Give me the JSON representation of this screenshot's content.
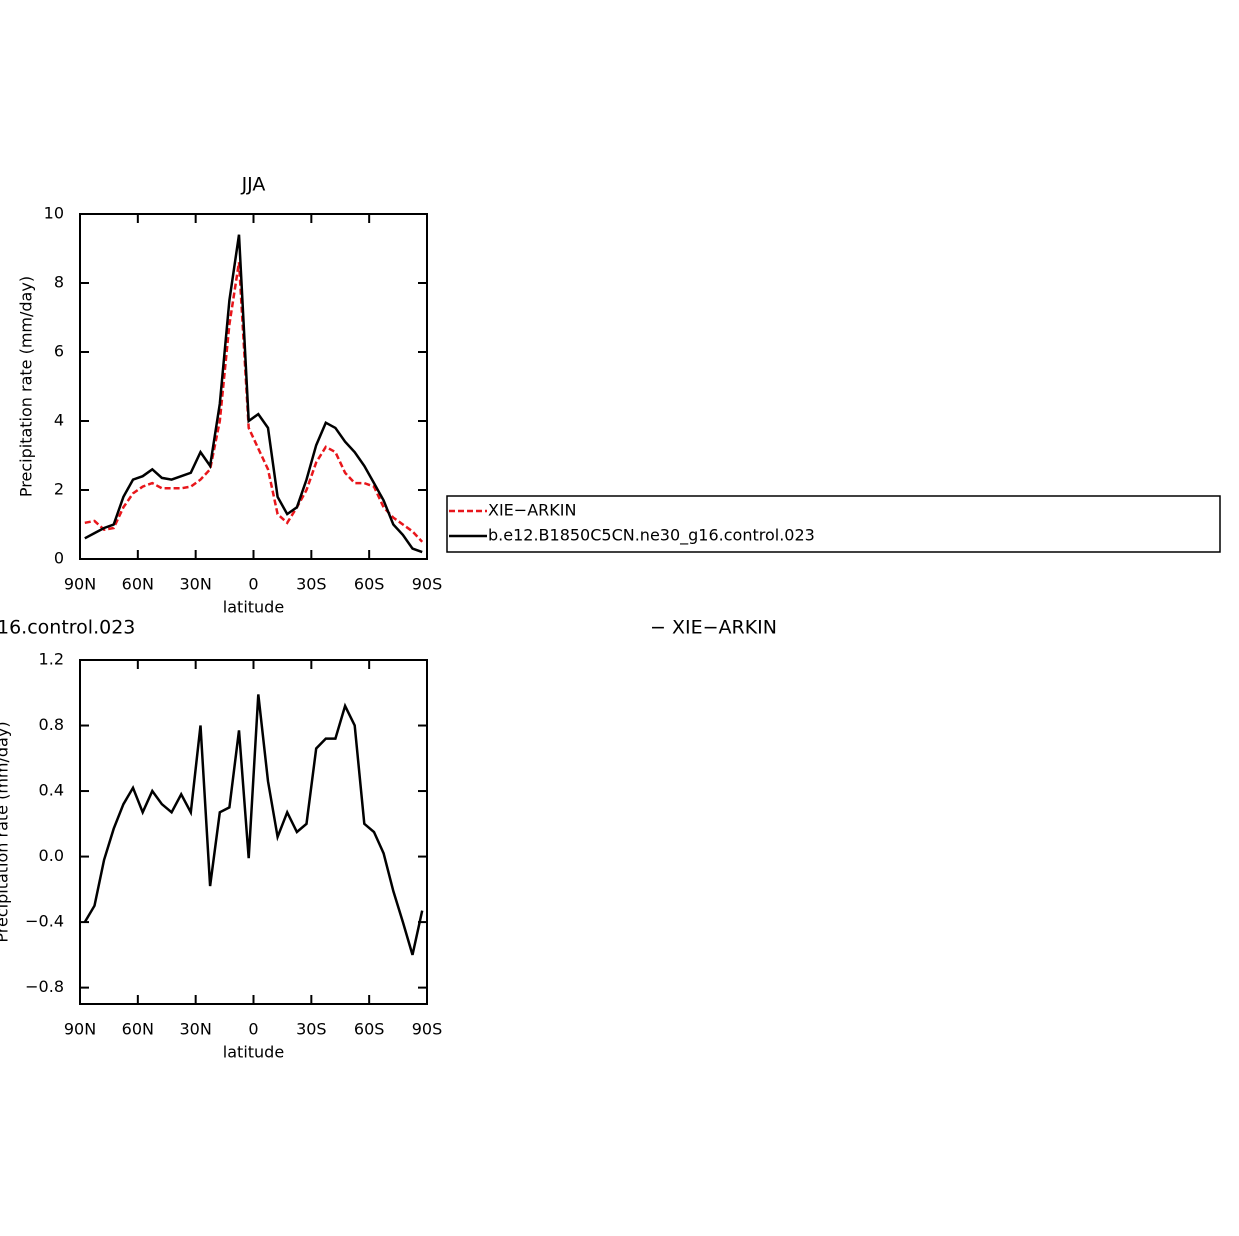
{
  "chart_data": [
    {
      "type": "line",
      "title": "JJA",
      "xlabel": "latitude",
      "ylabel": "Precipitation rate (mm/day)",
      "x": [
        87.5,
        82.5,
        77.5,
        72.5,
        67.5,
        62.5,
        57.5,
        52.5,
        47.5,
        42.5,
        37.5,
        32.5,
        27.5,
        22.5,
        17.5,
        12.5,
        7.5,
        2.5,
        -2.5,
        -7.5,
        -12.5,
        -17.5,
        -22.5,
        -27.5,
        -32.5,
        -37.5,
        -42.5,
        -47.5,
        -52.5,
        -57.5,
        -62.5,
        -67.5,
        -72.5,
        -77.5,
        -82.5,
        -87.5
      ],
      "series": [
        {
          "name": "XIE−ARKIN",
          "color": "#e8161b",
          "style": "dashed",
          "values": [
            1.05,
            1.1,
            0.85,
            0.9,
            1.5,
            1.9,
            2.1,
            2.2,
            2.05,
            2.05,
            2.05,
            2.1,
            2.3,
            2.6,
            4.0,
            6.8,
            8.6,
            3.8,
            3.2,
            2.6,
            1.3,
            1.05,
            1.5,
            2.0,
            2.8,
            3.25,
            3.1,
            2.5,
            2.2,
            2.2,
            2.1,
            1.5,
            1.2,
            1.0,
            0.8,
            0.5
          ]
        },
        {
          "name": "b.e12.B1850C5CN.ne30_g16.control.023",
          "color": "#000000",
          "style": "solid",
          "values": [
            0.6,
            0.75,
            0.9,
            1.0,
            1.8,
            2.3,
            2.4,
            2.6,
            2.35,
            2.3,
            2.4,
            2.5,
            3.1,
            2.7,
            4.5,
            7.5,
            9.4,
            4.0,
            4.2,
            3.8,
            1.8,
            1.3,
            1.5,
            2.3,
            3.3,
            3.95,
            3.8,
            3.4,
            3.1,
            2.7,
            2.2,
            1.7,
            1.0,
            0.7,
            0.3,
            0.2
          ]
        }
      ],
      "xlim": [
        90,
        -90
      ],
      "xticks": [
        {
          "value": 90,
          "label": "90N"
        },
        {
          "value": 60,
          "label": "60N"
        },
        {
          "value": 30,
          "label": "30N"
        },
        0,
        {
          "value": -30,
          "label": "30S"
        },
        {
          "value": -60,
          "label": "60S"
        },
        {
          "value": -90,
          "label": "90S"
        }
      ],
      "ylim": [
        0,
        10
      ],
      "yticks": [
        0,
        2,
        4,
        6,
        8,
        10
      ],
      "legend": "right"
    },
    {
      "type": "line",
      "title_fragments": [
        "16.control.023",
        "− XIE−ARKIN"
      ],
      "xlabel": "latitude",
      "ylabel": "Precipitation rate (mm/day)",
      "x": [
        87.5,
        82.5,
        77.5,
        72.5,
        67.5,
        62.5,
        57.5,
        52.5,
        47.5,
        42.5,
        37.5,
        32.5,
        27.5,
        22.5,
        17.5,
        12.5,
        7.5,
        2.5,
        -2.5,
        -7.5,
        -12.5,
        -17.5,
        -22.5,
        -27.5,
        -32.5,
        -37.5,
        -42.5,
        -47.5,
        -52.5,
        -57.5,
        -62.5,
        -67.5,
        -72.5,
        -77.5,
        -82.5,
        -87.5
      ],
      "series": [
        {
          "color": "#000000",
          "style": "solid",
          "values": [
            -0.4,
            -0.3,
            -0.02,
            0.17,
            0.32,
            0.42,
            0.27,
            0.4,
            0.32,
            0.27,
            0.38,
            0.27,
            0.8,
            -0.18,
            0.27,
            0.3,
            0.77,
            -0.01,
            0.99,
            0.46,
            0.12,
            0.27,
            0.15,
            0.2,
            0.66,
            0.72,
            0.72,
            0.92,
            0.8,
            0.2,
            0.15,
            0.02,
            -0.21,
            -0.4,
            -0.6,
            -0.33
          ]
        }
      ],
      "xlim": [
        90,
        -90
      ],
      "xticks": [
        {
          "value": 90,
          "label": "90N"
        },
        {
          "value": 60,
          "label": "60N"
        },
        {
          "value": 30,
          "label": "30N"
        },
        0,
        {
          "value": -30,
          "label": "30S"
        },
        {
          "value": -60,
          "label": "60S"
        },
        {
          "value": -90,
          "label": "90S"
        }
      ],
      "ylim": [
        -0.9,
        1.2
      ],
      "yticks": [
        {
          "value": -0.8,
          "label": "−0.8"
        },
        {
          "value": -0.4,
          "label": "−0.4"
        },
        {
          "value": 0,
          "label": "0.0"
        },
        0.4,
        0.8,
        1.2
      ]
    }
  ]
}
